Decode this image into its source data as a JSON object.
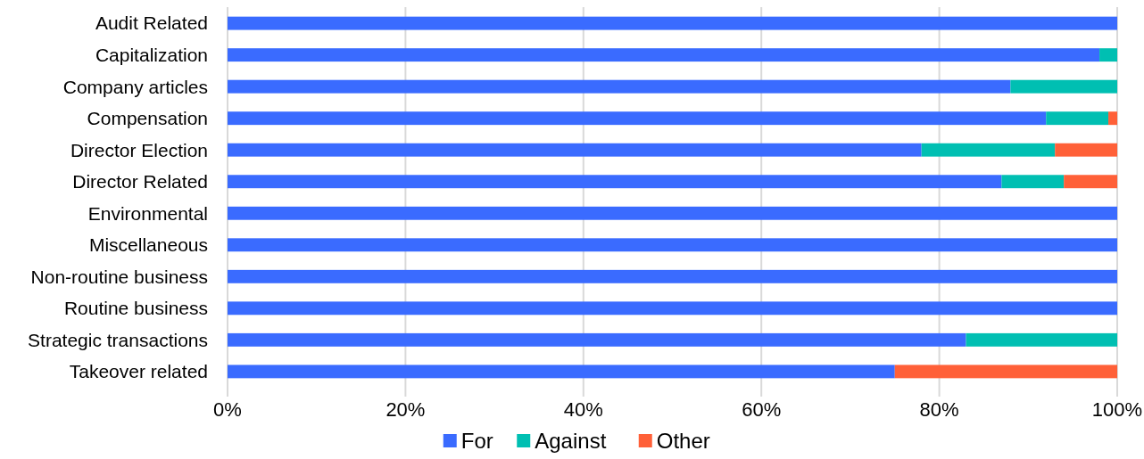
{
  "chart_data": {
    "type": "bar",
    "orientation": "horizontal",
    "stacked": true,
    "categories": [
      "Audit Related",
      "Capitalization",
      "Company articles",
      "Compensation",
      "Director Election",
      "Director Related",
      "Environmental",
      "Miscellaneous",
      "Non-routine business",
      "Routine business",
      "Strategic transactions",
      "Takeover related"
    ],
    "series": [
      {
        "name": "For",
        "color": "#3a6bff",
        "values": [
          100,
          98,
          88,
          92,
          78,
          87,
          100,
          100,
          100,
          100,
          83,
          75
        ]
      },
      {
        "name": "Against",
        "color": "#00bfb2",
        "values": [
          0,
          2,
          12,
          7,
          15,
          7,
          0,
          0,
          0,
          0,
          17,
          0
        ]
      },
      {
        "name": "Other",
        "color": "#ff6038",
        "values": [
          0,
          0,
          0,
          1,
          7,
          6,
          0,
          0,
          0,
          0,
          0,
          25
        ]
      }
    ],
    "xlim": [
      0,
      100
    ],
    "xticks": [
      {
        "value": 0,
        "label": "0%"
      },
      {
        "value": 20,
        "label": "20%"
      },
      {
        "value": 40,
        "label": "40%"
      },
      {
        "value": 60,
        "label": "60%"
      },
      {
        "value": 80,
        "label": "80%"
      },
      {
        "value": 100,
        "label": "100%"
      }
    ],
    "grid": "x",
    "legend": "bottom"
  }
}
